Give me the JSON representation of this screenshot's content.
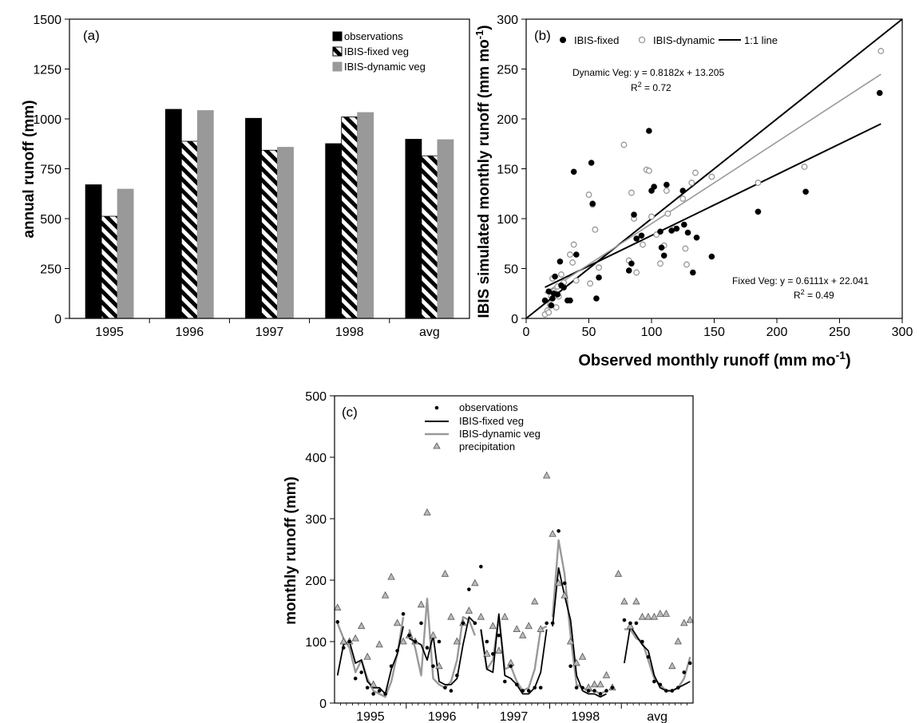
{
  "chart_data": [
    {
      "type": "bar",
      "panel_label": "(a)",
      "categories": [
        "1995",
        "1996",
        "1997",
        "1998",
        "avg"
      ],
      "ylabel": "annual runoff (mm)",
      "ylim": [
        0,
        1500
      ],
      "yticks": [
        "0",
        "250",
        "500",
        "750",
        "1000",
        "1250",
        "1500"
      ],
      "grid": false,
      "legend_position": "top-right",
      "series": [
        {
          "name": "observations",
          "color": "#000000",
          "fill": "solid",
          "values": [
            670,
            1048,
            1003,
            876,
            898
          ]
        },
        {
          "name": "IBIS-fixed veg",
          "color": "#000000",
          "fill": "diagonal-hatch",
          "values": [
            512,
            888,
            843,
            1010,
            815
          ]
        },
        {
          "name": "IBIS-dynamic veg",
          "color": "#999999",
          "fill": "solid",
          "values": [
            648,
            1042,
            858,
            1032,
            896
          ]
        }
      ]
    },
    {
      "type": "scatter",
      "panel_label": "(b)",
      "xlabel": "Observed monthly runoff (mm mo",
      "xlabel_sup": "-1",
      "xlabel_end": ")",
      "ylabel": "IBIS simulated monthly runoff (mm mo",
      "ylabel_sup": "-1",
      "ylabel_end": ")",
      "xlim": [
        0,
        300
      ],
      "ylim": [
        0,
        300
      ],
      "xticks": [
        "0",
        "50",
        "100",
        "150",
        "200",
        "250",
        "300"
      ],
      "yticks": [
        "0",
        "50",
        "100",
        "150",
        "200",
        "250",
        "300"
      ],
      "grid": false,
      "legend_position": "top",
      "legend": [
        "IBIS-fixed",
        "IBIS-dynamic",
        "1:1 line"
      ],
      "annotations": {
        "dynamic_eq": "Dynamic Veg: y = 0.8182x + 13.205",
        "dynamic_r2_base": "R",
        "dynamic_r2_sup": "2",
        "dynamic_r2_val": " = 0.72",
        "fixed_eq": "Fixed Veg: y = 0.6111x + 22.041",
        "fixed_r2_base": "R",
        "fixed_r2_sup": "2",
        "fixed_r2_val": " = 0.49"
      },
      "fits": {
        "dynamic": {
          "slope": 0.8182,
          "intercept": 13.205,
          "color": "#999999"
        },
        "fixed": {
          "slope": 0.6111,
          "intercept": 22.041,
          "color": "#000000"
        },
        "one_to_one": {
          "slope": 1,
          "intercept": 0,
          "color": "#000000"
        }
      },
      "series": [
        {
          "name": "IBIS-fixed",
          "marker": "filled-circle",
          "points": [
            [
              15,
              18
            ],
            [
              18,
              27
            ],
            [
              20,
              13
            ],
            [
              21,
              20
            ],
            [
              22,
              25
            ],
            [
              23,
              42
            ],
            [
              25,
              24
            ],
            [
              27,
              57
            ],
            [
              28,
              33
            ],
            [
              30,
              31
            ],
            [
              33,
              18
            ],
            [
              35,
              18
            ],
            [
              38,
              147
            ],
            [
              40,
              64
            ],
            [
              52,
              156
            ],
            [
              53,
              115
            ],
            [
              56,
              20
            ],
            [
              58,
              41
            ],
            [
              82,
              48
            ],
            [
              84,
              55
            ],
            [
              86,
              104
            ],
            [
              88,
              80
            ],
            [
              92,
              83
            ],
            [
              98,
              188
            ],
            [
              100,
              128
            ],
            [
              102,
              132
            ],
            [
              107,
              87
            ],
            [
              108,
              71
            ],
            [
              110,
              63
            ],
            [
              112,
              134
            ],
            [
              116,
              88
            ],
            [
              120,
              90
            ],
            [
              125,
              128
            ],
            [
              126,
              94
            ],
            [
              129,
              86
            ],
            [
              133,
              46
            ],
            [
              136,
              81
            ],
            [
              148,
              62
            ],
            [
              185,
              107
            ],
            [
              223,
              127
            ],
            [
              282,
              226
            ]
          ]
        },
        {
          "name": "IBIS-dynamic",
          "marker": "open-circle",
          "points": [
            [
              15,
              4
            ],
            [
              17,
              8
            ],
            [
              18,
              6
            ],
            [
              19,
              14
            ],
            [
              20,
              22
            ],
            [
              21,
              40
            ],
            [
              22,
              27
            ],
            [
              24,
              11
            ],
            [
              25,
              32
            ],
            [
              26,
              22
            ],
            [
              28,
              44
            ],
            [
              30,
              36
            ],
            [
              35,
              64
            ],
            [
              37,
              56
            ],
            [
              38,
              74
            ],
            [
              40,
              38
            ],
            [
              50,
              124
            ],
            [
              51,
              35
            ],
            [
              53,
              114
            ],
            [
              55,
              89
            ],
            [
              58,
              51
            ],
            [
              78,
              174
            ],
            [
              82,
              58
            ],
            [
              84,
              126
            ],
            [
              86,
              100
            ],
            [
              88,
              46
            ],
            [
              93,
              74
            ],
            [
              96,
              149
            ],
            [
              98,
              148
            ],
            [
              100,
              102
            ],
            [
              104,
              84
            ],
            [
              107,
              55
            ],
            [
              110,
              73
            ],
            [
              112,
              128
            ],
            [
              113,
              105
            ],
            [
              118,
              90
            ],
            [
              125,
              120
            ],
            [
              127,
              70
            ],
            [
              128,
              54
            ],
            [
              132,
              136
            ],
            [
              135,
              146
            ],
            [
              148,
              142
            ],
            [
              185,
              136
            ],
            [
              222,
              152
            ],
            [
              283,
              268
            ]
          ]
        }
      ]
    },
    {
      "type": "line",
      "panel_label": "(c)",
      "ylabel": "monthly runoff (mm)",
      "ylim": [
        0,
        500
      ],
      "yticks": [
        "0",
        "100",
        "200",
        "300",
        "400",
        "500"
      ],
      "categories": [
        "1995",
        "1996",
        "1997",
        "1998",
        "avg"
      ],
      "grid": false,
      "legend_position": "top-left",
      "months_per_segment": 12,
      "series": [
        {
          "name": "observations",
          "marker": "dot",
          "segments": [
            [
              132,
              90,
              100,
              40,
              50,
              25,
              15,
              20,
              15,
              60,
              85,
              145
            ],
            [
              110,
              100,
              130,
              90,
              60,
              100,
              25,
              20,
              45,
              130,
              185,
              130
            ],
            [
              222,
              100,
              80,
              110,
              35,
              60,
              30,
              20,
              20,
              25,
              25,
              130
            ],
            [
              130,
              280,
              195,
              60,
              25,
              25,
              20,
              20,
              15,
              20,
              25,
              null
            ],
            [
              135,
              130,
              130,
              100,
              75,
              35,
              30,
              20,
              20,
              25,
              50,
              65
            ]
          ]
        },
        {
          "name": "IBIS-fixed veg",
          "marker": "line-black",
          "segments": [
            [
              45,
              95,
              100,
              65,
              70,
              35,
              25,
              25,
              15,
              55,
              80,
              125
            ],
            [
              105,
              100,
              95,
              70,
              110,
              35,
              30,
              30,
              40,
              95,
              140,
              130
            ],
            [
              120,
              55,
              50,
              145,
              45,
              40,
              30,
              15,
              15,
              25,
              50,
              120
            ],
            [
              125,
              220,
              175,
              135,
              45,
              20,
              15,
              15,
              10,
              15,
              null,
              null
            ],
            [
              65,
              125,
              110,
              95,
              85,
              45,
              25,
              20,
              20,
              25,
              30,
              35
            ]
          ]
        },
        {
          "name": "IBIS-dynamic veg",
          "marker": "line-gray",
          "segments": [
            [
              130,
              105,
              90,
              50,
              70,
              40,
              20,
              15,
              10,
              35,
              80,
              140
            ],
            [
              120,
              90,
              45,
              170,
              40,
              30,
              25,
              35,
              70,
              140,
              135,
              110
            ],
            [
              120,
              55,
              70,
              140,
              55,
              60,
              35,
              20,
              25,
              55,
              120,
              125
            ],
            [
              140,
              265,
              210,
              110,
              30,
              25,
              20,
              20,
              15,
              20,
              null,
              null
            ],
            [
              120,
              120,
              105,
              100,
              70,
              40,
              30,
              20,
              20,
              25,
              40,
              75
            ]
          ]
        },
        {
          "name": "precipitation",
          "marker": "open-triangle",
          "segments": [
            [
              155,
              100,
              100,
              105,
              125,
              75,
              30,
              95,
              175,
              205,
              130,
              100
            ],
            [
              110,
              100,
              160,
              310,
              110,
              60,
              210,
              140,
              100,
              130,
              150,
              195
            ],
            [
              140,
              80,
              125,
              85,
              140,
              65,
              120,
              110,
              125,
              165,
              120,
              370
            ],
            [
              275,
              195,
              175,
              100,
              65,
              75,
              25,
              30,
              30,
              45,
              25,
              210
            ],
            [
              165,
              125,
              165,
              140,
              140,
              140,
              145,
              145,
              60,
              100,
              130,
              135
            ]
          ]
        }
      ]
    }
  ]
}
